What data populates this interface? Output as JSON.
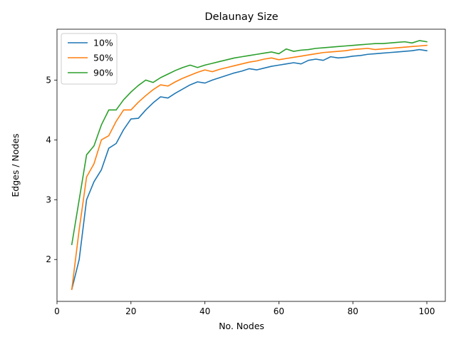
{
  "chart_data": {
    "type": "line",
    "title": "Delaunay Size",
    "xlabel": "No. Nodes",
    "ylabel": "Edges / Nodes",
    "xlim": [
      0,
      105
    ],
    "ylim": [
      1.3,
      5.85
    ],
    "xticks": [
      0,
      20,
      40,
      60,
      80,
      100
    ],
    "yticks": [
      2,
      3,
      4,
      5
    ],
    "grid": false,
    "legend_position": "upper-left",
    "x": [
      4,
      6,
      8,
      10,
      12,
      14,
      16,
      18,
      20,
      22,
      24,
      26,
      28,
      30,
      32,
      34,
      36,
      38,
      40,
      42,
      44,
      46,
      48,
      50,
      52,
      54,
      56,
      58,
      60,
      62,
      64,
      66,
      68,
      70,
      72,
      74,
      76,
      78,
      80,
      82,
      84,
      86,
      88,
      90,
      92,
      94,
      96,
      98,
      100
    ],
    "series": [
      {
        "name": "10%",
        "color": "#1f77b4",
        "values": [
          1.5,
          2.0,
          3.0,
          3.3,
          3.5,
          3.86,
          3.94,
          4.17,
          4.35,
          4.36,
          4.5,
          4.62,
          4.72,
          4.7,
          4.78,
          4.85,
          4.92,
          4.97,
          4.95,
          5.0,
          5.04,
          5.08,
          5.12,
          5.15,
          5.19,
          5.17,
          5.2,
          5.23,
          5.25,
          5.27,
          5.29,
          5.27,
          5.33,
          5.35,
          5.33,
          5.39,
          5.37,
          5.38,
          5.4,
          5.41,
          5.43,
          5.44,
          5.45,
          5.46,
          5.47,
          5.48,
          5.49,
          5.51,
          5.49
        ]
      },
      {
        "name": "50%",
        "color": "#ff7f0e",
        "values": [
          1.5,
          2.5,
          3.38,
          3.6,
          4.0,
          4.07,
          4.31,
          4.5,
          4.5,
          4.63,
          4.74,
          4.84,
          4.92,
          4.9,
          4.97,
          5.03,
          5.08,
          5.13,
          5.17,
          5.14,
          5.18,
          5.21,
          5.24,
          5.27,
          5.3,
          5.32,
          5.35,
          5.37,
          5.34,
          5.36,
          5.38,
          5.4,
          5.42,
          5.44,
          5.46,
          5.47,
          5.48,
          5.49,
          5.51,
          5.52,
          5.53,
          5.51,
          5.52,
          5.53,
          5.54,
          5.55,
          5.56,
          5.57,
          5.58
        ]
      },
      {
        "name": "90%",
        "color": "#2ca02c",
        "values": [
          2.25,
          3.0,
          3.75,
          3.9,
          4.25,
          4.5,
          4.5,
          4.67,
          4.8,
          4.91,
          5.0,
          4.96,
          5.04,
          5.1,
          5.16,
          5.21,
          5.25,
          5.21,
          5.25,
          5.28,
          5.31,
          5.34,
          5.37,
          5.39,
          5.41,
          5.43,
          5.45,
          5.47,
          5.44,
          5.52,
          5.48,
          5.5,
          5.51,
          5.53,
          5.54,
          5.55,
          5.56,
          5.57,
          5.58,
          5.59,
          5.6,
          5.61,
          5.61,
          5.62,
          5.63,
          5.64,
          5.62,
          5.66,
          5.64
        ]
      }
    ]
  }
}
